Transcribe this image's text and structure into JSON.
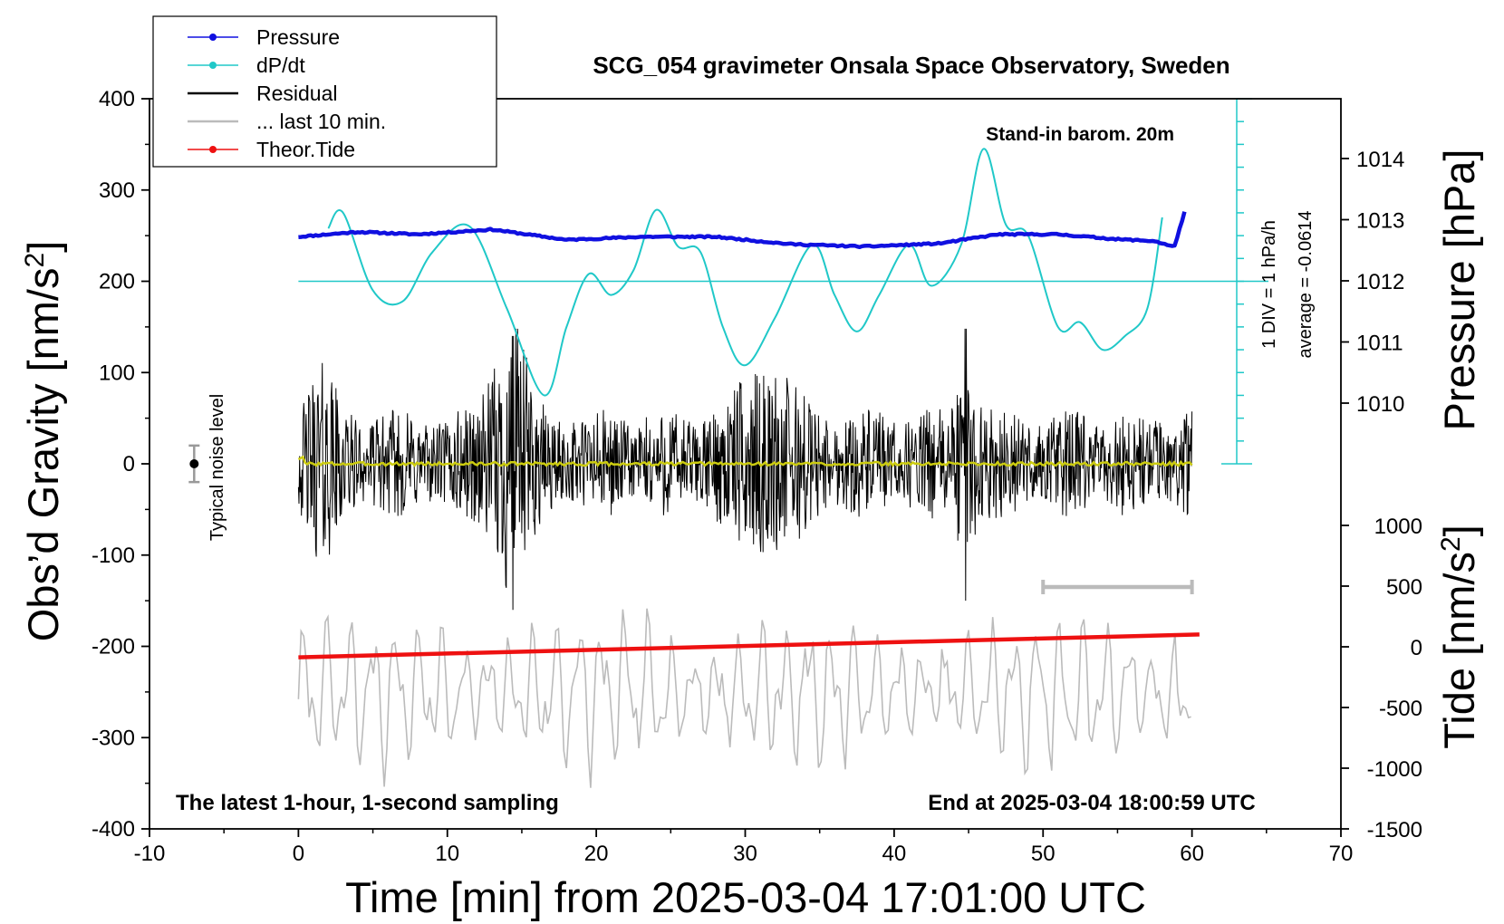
{
  "chart_data": {
    "type": "line",
    "title": "SCG_054 gravimeter Onsala Space Observatory, Sweden",
    "xlabel": "Time [min] from 2025-03-04 17:01:00 UTC",
    "ylabel_main": "Obs’d Gravity [nm/s",
    "ylabel_main_sup": "2",
    "ylabel_main_end": "]",
    "ylabel_pressure": "Pressure [hPa]",
    "ylabel_tide": "Tide [nm/s",
    "ylabel_tide_sup": "2",
    "ylabel_tide_end": "]",
    "xlim": [
      -10,
      70
    ],
    "ylim": [
      -400,
      400
    ],
    "x_ticks": [
      "-10",
      "0",
      "10",
      "20",
      "30",
      "40",
      "50",
      "60",
      "70"
    ],
    "y_ticks": [
      "-400",
      "-300",
      "-200",
      "-100",
      "0",
      "100",
      "200",
      "300",
      "400"
    ],
    "pressure_ticks": [
      "1010",
      "1011",
      "1012",
      "1013",
      "1014"
    ],
    "tide_ticks": [
      "-1500",
      "-1000",
      "-500",
      "0",
      "500",
      "1000"
    ],
    "legend": [
      {
        "label": "Pressure",
        "color": "#1010e0"
      },
      {
        "label": "dP/dt",
        "color": "#20c8c8"
      },
      {
        "label": "Residual",
        "color": "#000000"
      },
      {
        "label": "... last 10 min.",
        "color": "#bbbbbb"
      },
      {
        "label": "Theor.Tide",
        "color": "#ee1111"
      }
    ],
    "annotations": {
      "barometer": "Stand-in barom. 20m",
      "scale": "1 DIV = 1 hPa/h",
      "average": "average = -0.0614",
      "noise": "Typical noise level",
      "bottom_left": "The latest 1-hour, 1-second sampling",
      "bottom_right": "End at 2025-03-04 18:00:59 UTC"
    },
    "series": [
      {
        "name": "Pressure",
        "unit": "hPa",
        "x": [
          0,
          4,
          8,
          13,
          18,
          23,
          28,
          33,
          38,
          43,
          47,
          51,
          55,
          57.5,
          58.8,
          59.5
        ],
        "values": [
          1012.72,
          1012.8,
          1012.76,
          1012.84,
          1012.67,
          1012.72,
          1012.72,
          1012.6,
          1012.56,
          1012.61,
          1012.76,
          1012.76,
          1012.68,
          1012.65,
          1012.55,
          1013.12
        ]
      },
      {
        "name": "dP/dt",
        "unit": "y-axis",
        "x": [
          2,
          3,
          5,
          7,
          9,
          11.5,
          14,
          16.5,
          18,
          19.5,
          21,
          22.5,
          24,
          25.5,
          27,
          28.5,
          30,
          32,
          34.5,
          36,
          37.5,
          39,
          41,
          42.5,
          44.5,
          46,
          47.5,
          49,
          51,
          52.5,
          54,
          55.5,
          57,
          58
        ],
        "values": [
          258,
          275,
          190,
          178,
          232,
          260,
          170,
          75,
          150,
          208,
          185,
          212,
          278,
          238,
          232,
          150,
          108,
          160,
          240,
          185,
          145,
          185,
          240,
          195,
          240,
          345,
          262,
          250,
          150,
          155,
          125,
          140,
          170,
          270
        ]
      },
      {
        "name": "Residual",
        "unit": "nm/s2",
        "x_range": [
          0,
          60
        ],
        "peak_min": -160,
        "peak_max": 148
      },
      {
        "name": "... last 10 min.",
        "unit": "nm/s2",
        "x_range": [
          0,
          60
        ],
        "center": -250,
        "peak_min": -355,
        "peak_max": -155
      },
      {
        "name": "Theor.Tide",
        "unit": "nm/s2",
        "x": [
          0,
          60.5
        ],
        "values": [
          -212,
          -187
        ]
      }
    ]
  }
}
